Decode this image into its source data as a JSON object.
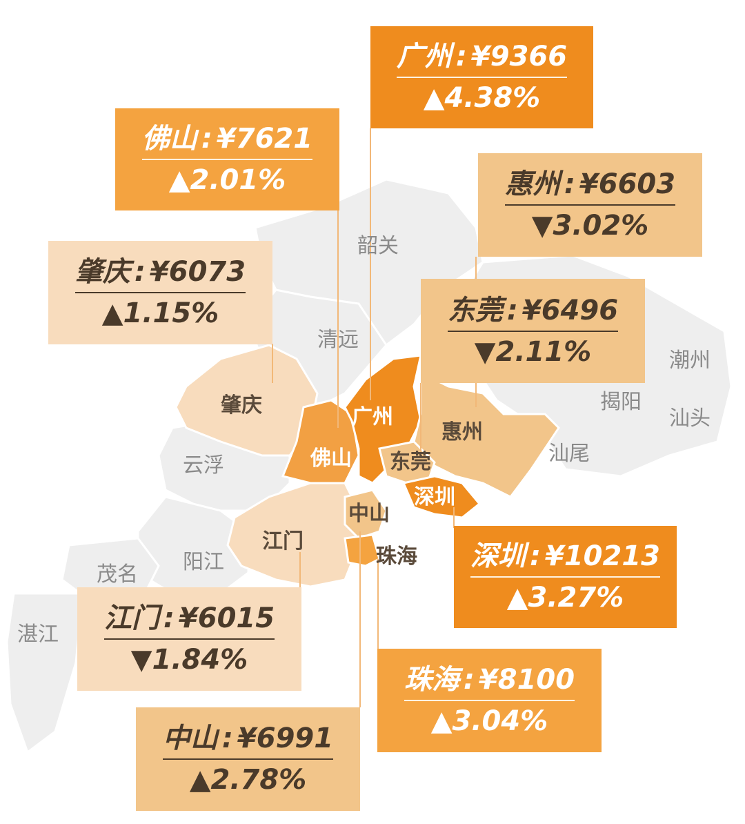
{
  "cities": [
    {
      "id": "guangzhou",
      "name": "广州",
      "price": "¥9366",
      "trend": "▲",
      "change": "4.38%",
      "fill": "#ef8c1e"
    },
    {
      "id": "foshan",
      "name": "佛山",
      "price": "¥7621",
      "trend": "▲",
      "change": "2.01%",
      "fill": "#f2a043"
    },
    {
      "id": "huizhou",
      "name": "惠州",
      "price": "¥6603",
      "trend": "▼",
      "change": "3.02%",
      "fill": "#f2c58a"
    },
    {
      "id": "zhaoqing",
      "name": "肇庆",
      "price": "¥6073",
      "trend": "▲",
      "change": "1.15%",
      "fill": "#f8dcbd"
    },
    {
      "id": "dongguan",
      "name": "东莞",
      "price": "¥6496",
      "trend": "▼",
      "change": "2.11%",
      "fill": "#f2c58a"
    },
    {
      "id": "shenzhen",
      "name": "深圳",
      "price": "¥10213",
      "trend": "▲",
      "change": "3.27%",
      "fill": "#ef8c1e"
    },
    {
      "id": "jiangmen",
      "name": "江门",
      "price": "¥6015",
      "trend": "▼",
      "change": "1.84%",
      "fill": "#f8dcbd"
    },
    {
      "id": "zhuhai",
      "name": "珠海",
      "price": "¥8100",
      "trend": "▲",
      "change": "3.04%",
      "fill": "#f4a340"
    },
    {
      "id": "zhongshan",
      "name": "中山",
      "price": "¥6991",
      "trend": "▲",
      "change": "2.78%",
      "fill": "#f2c58a"
    }
  ],
  "other_regions": [
    {
      "id": "shaoguan",
      "name": "韶关"
    },
    {
      "id": "qingyuan",
      "name": "清远"
    },
    {
      "id": "yunfu",
      "name": "云浮"
    },
    {
      "id": "yangjiang",
      "name": "阳江"
    },
    {
      "id": "maoming",
      "name": "茂名"
    },
    {
      "id": "zhanjiang",
      "name": "湛江"
    },
    {
      "id": "chaozhou",
      "name": "潮州"
    },
    {
      "id": "jieyang",
      "name": "揭阳"
    },
    {
      "id": "shantou",
      "name": "汕头"
    },
    {
      "id": "shanwei",
      "name": "汕尾"
    }
  ],
  "colors": {
    "tier1": "#ef8c1e",
    "tier2": "#f4a340",
    "tier3": "#f2c58a",
    "tier4": "#f8dcbd",
    "base_region": "#eeeeee",
    "leader_line": "#f2b878"
  }
}
